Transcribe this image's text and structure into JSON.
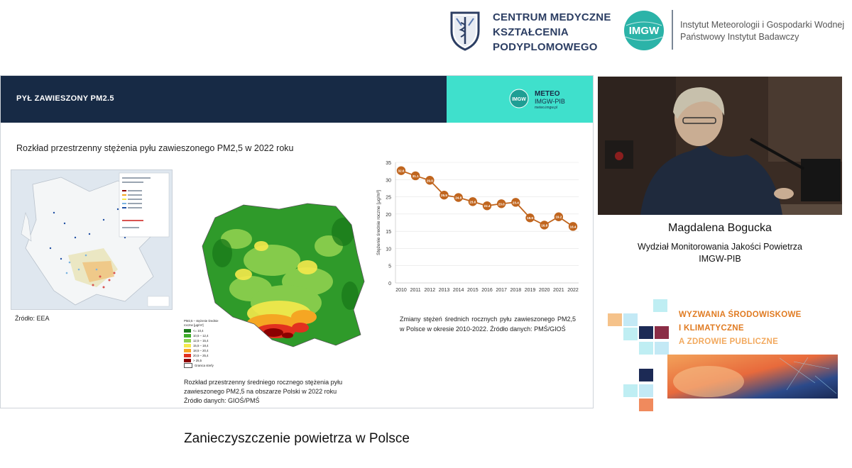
{
  "top": {
    "cmkp_lines": [
      "CENTRUM MEDYCZNE",
      "KSZTAŁCENIA",
      "PODYPLOMOWEGO"
    ],
    "imgw_badge": "IMGW",
    "imgw_lines": [
      "Instytut Meteorologii i Gospodarki Wodnej",
      "Państwowy Instytut Badawczy"
    ]
  },
  "slide": {
    "title": "PYŁ ZAWIESZONY PM2.5",
    "meteo_title": "METEO",
    "meteo_sub": "IMGW-PIB",
    "meteo_url": "meteo.imgw.pl",
    "meteo_logo_text": "IMGW",
    "subtitle": "Rozkład przestrzenny stężenia pyłu zawieszonego PM2,5 w 2022 roku",
    "eea_source": "Źródło: EEA",
    "legend_title": "PM2,5 – stężenie średnie roczne [µg/m³]",
    "legend": [
      {
        "label": "<= 10,4",
        "color": "#1a7a1a"
      },
      {
        "label": "10,5 – 12,4",
        "color": "#3fae2a"
      },
      {
        "label": "12,5 – 15,4",
        "color": "#8fd14f"
      },
      {
        "label": "15,5 – 18,4",
        "color": "#f5e94c"
      },
      {
        "label": "18,5 – 20,4",
        "color": "#f5a623"
      },
      {
        "label": "20,5 – 25,4",
        "color": "#e2301f"
      },
      {
        "label": "> 25,5",
        "color": "#8b0000"
      },
      {
        "label": "Granica strefy",
        "color": "#ffffff"
      }
    ],
    "map_caption": [
      "Rozkład przestrzenny średniego rocznego stężenia pyłu",
      "zawieszonego PM2,5 na obszarze Polski w 2022 roku",
      "Źródło danych: GIOŚ/PMŚ"
    ],
    "chart_caption": "Zmiany stężeń średnich rocznych pyłu zawieszonego PM2,5 w Polsce w okresie 2010-2022. Źródło danych: PMŚ/GIOŚ"
  },
  "chart_data": {
    "type": "line",
    "x": [
      2010,
      2011,
      2012,
      2013,
      2014,
      2015,
      2016,
      2017,
      2018,
      2019,
      2020,
      2021,
      2022
    ],
    "series": [
      {
        "values": [
          32.6,
          31.1,
          29.8,
          25.5,
          24.8,
          23.6,
          22.4,
          23.0,
          23.4,
          18.9,
          16.8,
          19.2,
          16.4
        ]
      }
    ],
    "ylabel": "Stężenie średnie roczne [µg/m³]",
    "ylim": [
      0,
      35
    ],
    "yticks": [
      0,
      5,
      10,
      15,
      20,
      25,
      30,
      35
    ],
    "grid": true,
    "line_color": "#c0651e",
    "marker_color": "#c0651e"
  },
  "speaker": {
    "name": "Magdalena Bogucka",
    "dept_lines": [
      "Wydział Monitorowania Jakości Powietrza",
      "IMGW-PIB"
    ]
  },
  "banner": {
    "lines": [
      "WYZWANIA ŚRODOWISKOWE",
      "I KLIMATYCZNE",
      "A ZDROWIE PUBLICZNE"
    ]
  },
  "footer": {
    "caption": "Zanieczyszczenie powietrza w Polsce"
  }
}
